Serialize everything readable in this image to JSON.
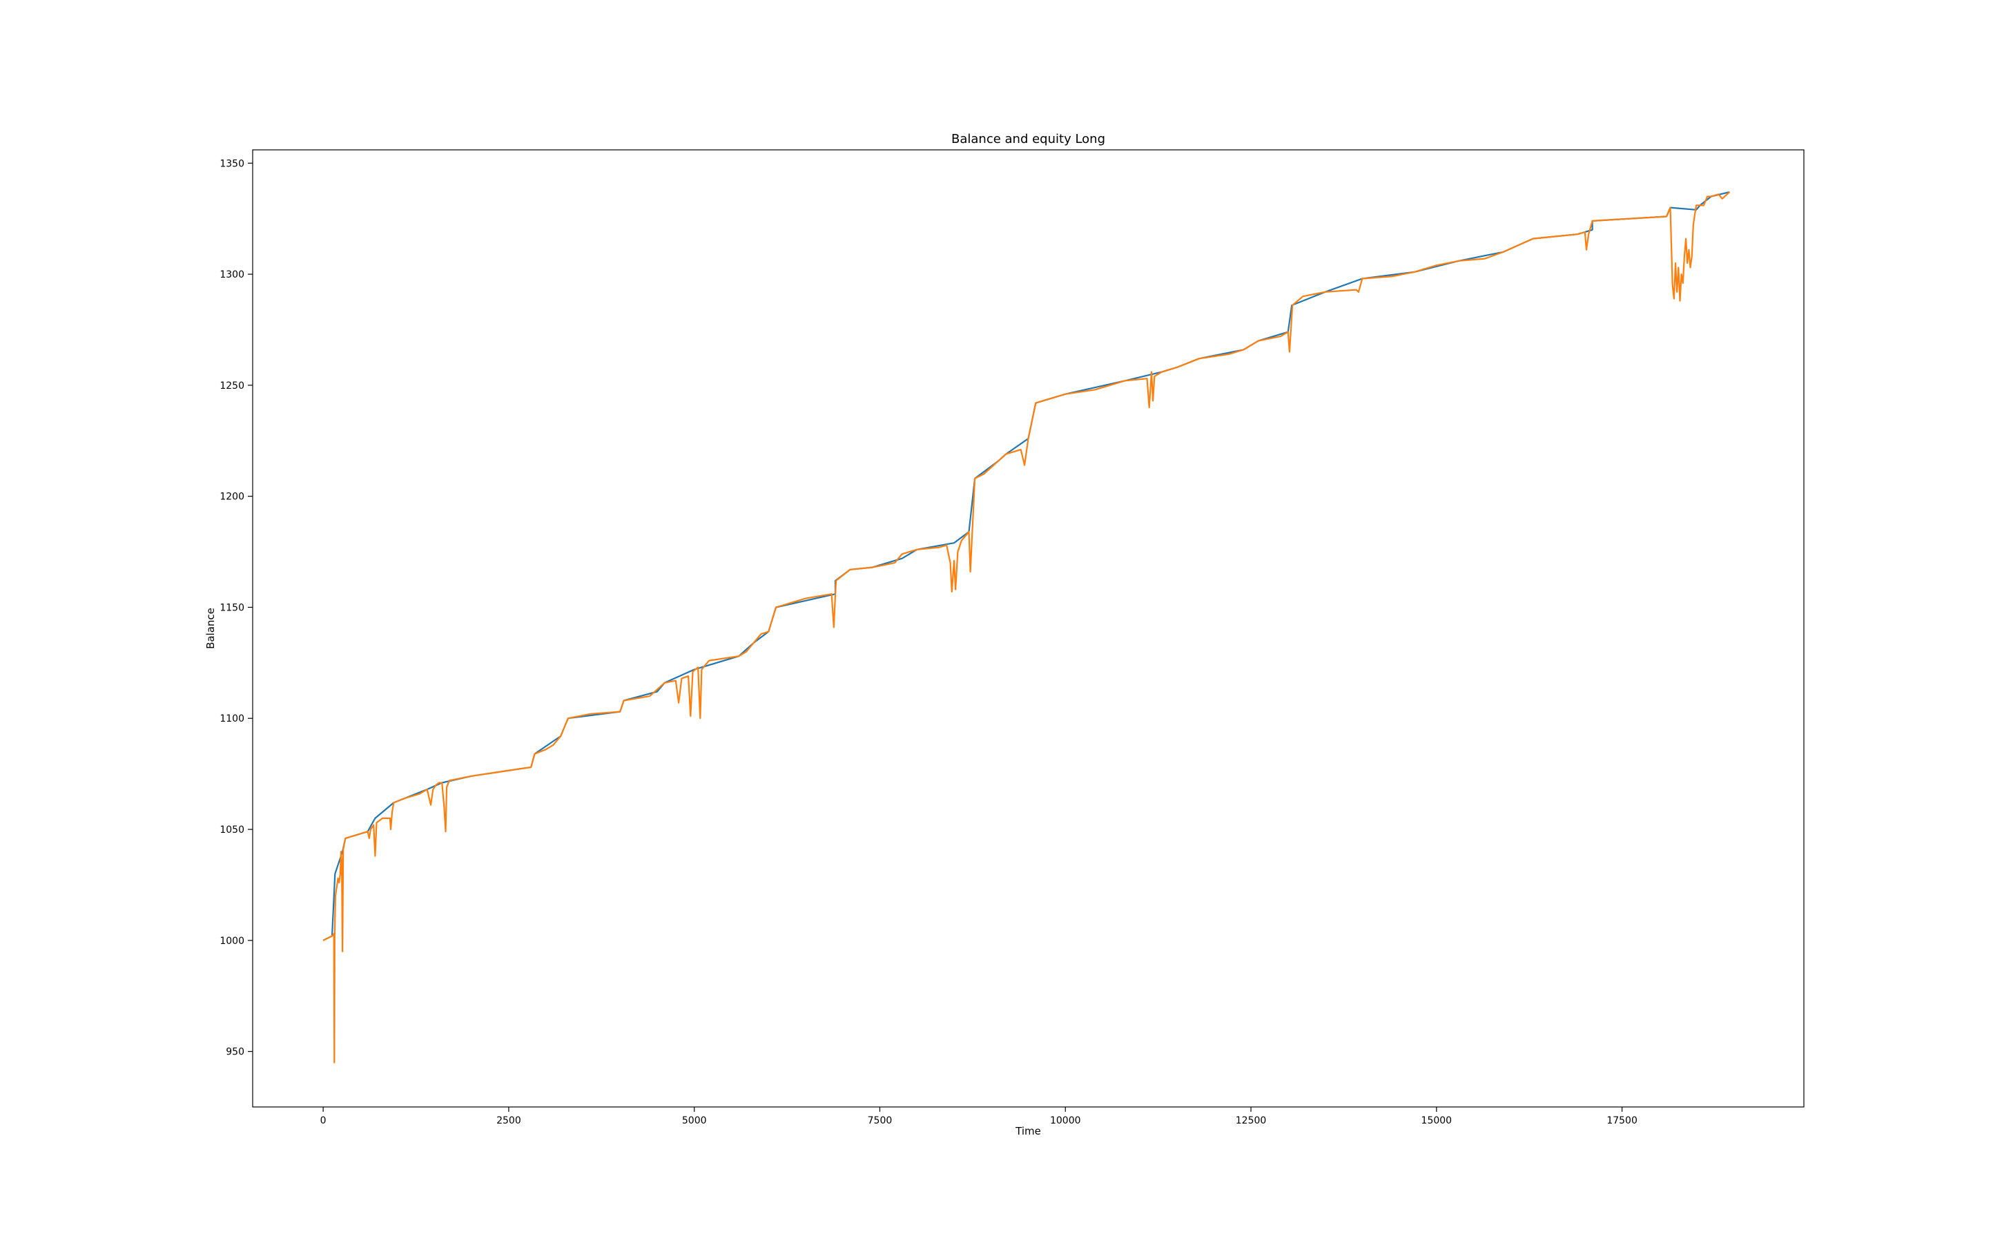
{
  "chart_data": {
    "type": "line",
    "title": "Balance and equity Long",
    "xlabel": "Time",
    "ylabel": "Balance",
    "xlim": [
      -950,
      19950
    ],
    "ylim": [
      925,
      1356
    ],
    "x_ticks": [
      0,
      2500,
      5000,
      7500,
      10000,
      12500,
      15000,
      17500
    ],
    "x_tick_labels": [
      "0",
      "2500",
      "5000",
      "7500",
      "10000",
      "12500",
      "15000",
      "17500"
    ],
    "y_ticks": [
      950,
      1000,
      1050,
      1100,
      1150,
      1200,
      1250,
      1300,
      1350
    ],
    "y_tick_labels": [
      "950",
      "1000",
      "1050",
      "1100",
      "1150",
      "1200",
      "1250",
      "1300",
      "1350"
    ],
    "grid": false,
    "legend": null,
    "colors": {
      "balance": "#1f77b4",
      "equity": "#ff7f0e"
    },
    "series": [
      {
        "color": "#1f77b4",
        "points": [
          [
            0,
            1000
          ],
          [
            120,
            1002
          ],
          [
            160,
            1030
          ],
          [
            260,
            1040
          ],
          [
            300,
            1046
          ],
          [
            600,
            1049
          ],
          [
            700,
            1055
          ],
          [
            950,
            1062
          ],
          [
            1400,
            1068
          ],
          [
            1600,
            1071
          ],
          [
            2000,
            1074
          ],
          [
            2800,
            1078
          ],
          [
            2850,
            1084
          ],
          [
            3200,
            1092
          ],
          [
            3300,
            1100
          ],
          [
            4000,
            1103
          ],
          [
            4050,
            1108
          ],
          [
            4500,
            1112
          ],
          [
            4600,
            1116
          ],
          [
            5000,
            1122
          ],
          [
            5600,
            1128
          ],
          [
            5800,
            1134
          ],
          [
            6000,
            1139
          ],
          [
            6100,
            1150
          ],
          [
            6900,
            1156
          ],
          [
            6900,
            1162
          ],
          [
            7100,
            1167
          ],
          [
            7400,
            1168
          ],
          [
            7800,
            1172
          ],
          [
            8000,
            1176
          ],
          [
            8500,
            1179
          ],
          [
            8700,
            1184
          ],
          [
            8780,
            1208
          ],
          [
            9100,
            1216
          ],
          [
            9200,
            1219
          ],
          [
            9500,
            1226
          ],
          [
            9600,
            1242
          ],
          [
            10000,
            1246
          ],
          [
            10800,
            1252
          ],
          [
            11300,
            1256
          ],
          [
            11500,
            1258
          ],
          [
            11800,
            1262
          ],
          [
            12400,
            1266
          ],
          [
            12600,
            1270
          ],
          [
            13000,
            1274
          ],
          [
            13050,
            1286
          ],
          [
            13500,
            1292
          ],
          [
            14000,
            1298
          ],
          [
            14700,
            1301
          ],
          [
            15300,
            1306
          ],
          [
            15900,
            1310
          ],
          [
            16300,
            1316
          ],
          [
            16900,
            1318
          ],
          [
            17100,
            1320
          ],
          [
            17100,
            1324
          ],
          [
            18100,
            1326
          ],
          [
            18150,
            1330
          ],
          [
            18500,
            1329
          ],
          [
            18550,
            1331
          ],
          [
            18700,
            1335
          ],
          [
            18950,
            1337
          ]
        ]
      },
      {
        "color": "#ff7f0e",
        "points": [
          [
            0,
            1000
          ],
          [
            60,
            1001
          ],
          [
            120,
            1002
          ],
          [
            145,
            1003
          ],
          [
            150,
            945
          ],
          [
            155,
            1003
          ],
          [
            165,
            1020
          ],
          [
            200,
            1028
          ],
          [
            215,
            1026
          ],
          [
            230,
            1030
          ],
          [
            240,
            1040
          ],
          [
            250,
            1036
          ],
          [
            260,
            995
          ],
          [
            270,
            1041
          ],
          [
            300,
            1046
          ],
          [
            400,
            1047
          ],
          [
            500,
            1048
          ],
          [
            600,
            1049
          ],
          [
            620,
            1046
          ],
          [
            640,
            1050
          ],
          [
            680,
            1052
          ],
          [
            700,
            1038
          ],
          [
            720,
            1053
          ],
          [
            800,
            1055
          ],
          [
            900,
            1055
          ],
          [
            910,
            1050
          ],
          [
            930,
            1058
          ],
          [
            950,
            1062
          ],
          [
            1100,
            1064
          ],
          [
            1300,
            1066
          ],
          [
            1400,
            1068
          ],
          [
            1450,
            1061
          ],
          [
            1480,
            1068
          ],
          [
            1520,
            1070
          ],
          [
            1560,
            1071
          ],
          [
            1600,
            1071
          ],
          [
            1630,
            1060
          ],
          [
            1650,
            1049
          ],
          [
            1665,
            1069
          ],
          [
            1700,
            1072
          ],
          [
            2000,
            1074
          ],
          [
            2400,
            1076
          ],
          [
            2800,
            1078
          ],
          [
            2850,
            1084
          ],
          [
            3000,
            1086
          ],
          [
            3100,
            1088
          ],
          [
            3200,
            1092
          ],
          [
            3300,
            1100
          ],
          [
            3600,
            1102
          ],
          [
            4000,
            1103
          ],
          [
            4050,
            1108
          ],
          [
            4400,
            1110
          ],
          [
            4600,
            1116
          ],
          [
            4750,
            1117
          ],
          [
            4790,
            1107
          ],
          [
            4830,
            1118
          ],
          [
            4920,
            1119
          ],
          [
            4950,
            1101
          ],
          [
            4980,
            1121
          ],
          [
            5050,
            1123
          ],
          [
            5080,
            1100
          ],
          [
            5100,
            1122
          ],
          [
            5200,
            1126
          ],
          [
            5600,
            1128
          ],
          [
            5700,
            1130
          ],
          [
            5800,
            1134
          ],
          [
            5900,
            1138
          ],
          [
            6000,
            1139
          ],
          [
            6100,
            1150
          ],
          [
            6500,
            1154
          ],
          [
            6850,
            1156
          ],
          [
            6880,
            1141
          ],
          [
            6910,
            1162
          ],
          [
            7100,
            1167
          ],
          [
            7400,
            1168
          ],
          [
            7700,
            1170
          ],
          [
            7800,
            1174
          ],
          [
            8000,
            1176
          ],
          [
            8300,
            1177
          ],
          [
            8400,
            1178
          ],
          [
            8450,
            1170
          ],
          [
            8470,
            1157
          ],
          [
            8500,
            1171
          ],
          [
            8520,
            1158
          ],
          [
            8550,
            1175
          ],
          [
            8600,
            1180
          ],
          [
            8700,
            1184
          ],
          [
            8720,
            1166
          ],
          [
            8780,
            1208
          ],
          [
            8900,
            1210
          ],
          [
            9100,
            1216
          ],
          [
            9200,
            1219
          ],
          [
            9400,
            1221
          ],
          [
            9450,
            1214
          ],
          [
            9500,
            1226
          ],
          [
            9600,
            1242
          ],
          [
            9800,
            1244
          ],
          [
            10000,
            1246
          ],
          [
            10400,
            1248
          ],
          [
            10800,
            1252
          ],
          [
            11100,
            1253
          ],
          [
            11130,
            1240
          ],
          [
            11160,
            1256
          ],
          [
            11180,
            1243
          ],
          [
            11200,
            1254
          ],
          [
            11300,
            1256
          ],
          [
            11500,
            1258
          ],
          [
            11800,
            1262
          ],
          [
            12200,
            1264
          ],
          [
            12400,
            1266
          ],
          [
            12600,
            1270
          ],
          [
            12900,
            1272
          ],
          [
            13000,
            1274
          ],
          [
            13020,
            1265
          ],
          [
            13060,
            1286
          ],
          [
            13200,
            1290
          ],
          [
            13500,
            1292
          ],
          [
            13920,
            1293
          ],
          [
            13950,
            1292
          ],
          [
            14000,
            1298
          ],
          [
            14400,
            1299
          ],
          [
            14700,
            1301
          ],
          [
            15000,
            1304
          ],
          [
            15300,
            1306
          ],
          [
            15650,
            1307
          ],
          [
            15900,
            1310
          ],
          [
            16300,
            1316
          ],
          [
            16600,
            1317
          ],
          [
            16900,
            1318
          ],
          [
            17000,
            1319
          ],
          [
            17020,
            1311
          ],
          [
            17050,
            1318
          ],
          [
            17100,
            1324
          ],
          [
            17600,
            1325
          ],
          [
            18100,
            1326
          ],
          [
            18150,
            1330
          ],
          [
            18180,
            1295
          ],
          [
            18200,
            1289
          ],
          [
            18220,
            1305
          ],
          [
            18240,
            1292
          ],
          [
            18260,
            1303
          ],
          [
            18280,
            1288
          ],
          [
            18300,
            1300
          ],
          [
            18320,
            1296
          ],
          [
            18340,
            1308
          ],
          [
            18360,
            1316
          ],
          [
            18380,
            1305
          ],
          [
            18400,
            1311
          ],
          [
            18420,
            1303
          ],
          [
            18440,
            1308
          ],
          [
            18460,
            1322
          ],
          [
            18480,
            1327
          ],
          [
            18500,
            1331
          ],
          [
            18550,
            1331
          ],
          [
            18600,
            1331
          ],
          [
            18650,
            1335
          ],
          [
            18700,
            1335
          ],
          [
            18800,
            1336
          ],
          [
            18850,
            1334
          ],
          [
            18950,
            1337
          ]
        ]
      }
    ]
  }
}
